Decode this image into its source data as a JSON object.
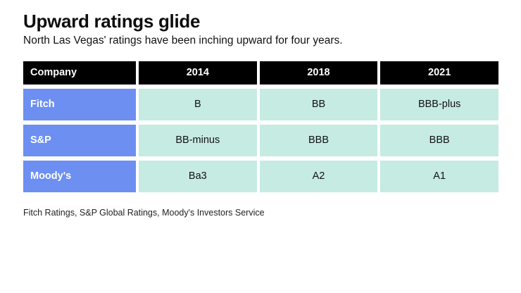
{
  "title": "Upward ratings glide",
  "subtitle": "North Las Vegas' ratings have been inching upward for four years.",
  "source": "Fitch Ratings, S&P Global Ratings, Moody's Investors Service",
  "colors": {
    "header_bg": "#000000",
    "company_bg": "#6d8ff2",
    "value_bg": "#c6ebe3"
  },
  "chart_data": {
    "type": "table",
    "title": "Upward ratings glide",
    "columns": [
      "Company",
      "2014",
      "2018",
      "2021"
    ],
    "rows": [
      {
        "company": "Fitch",
        "values": [
          "B",
          "BB",
          "BBB-plus"
        ]
      },
      {
        "company": "S&P",
        "values": [
          "BB-minus",
          "BBB",
          "BBB"
        ]
      },
      {
        "company": "Moody's",
        "values": [
          "Ba3",
          "A2",
          "A1"
        ]
      }
    ],
    "legend_position": "none",
    "grid": false
  }
}
